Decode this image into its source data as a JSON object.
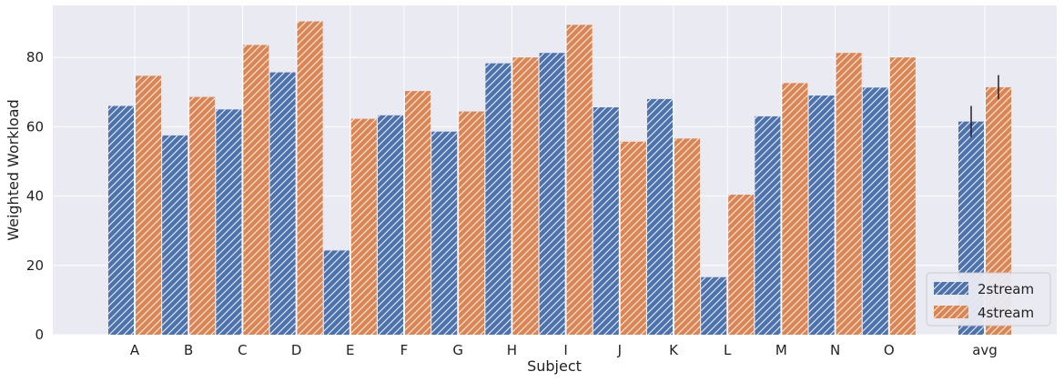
{
  "chart_data": {
    "type": "bar",
    "xlabel": "Subject",
    "ylabel": "Weighted Workload",
    "ylim": [
      0,
      95
    ],
    "yticks": [
      0,
      20,
      40,
      60,
      80
    ],
    "grid": true,
    "legend_position": "lower-right",
    "categories": [
      "A",
      "B",
      "C",
      "D",
      "E",
      "F",
      "G",
      "H",
      "I",
      "J",
      "K",
      "L",
      "M",
      "N",
      "O",
      "avg"
    ],
    "series": [
      {
        "name": "2stream",
        "color": "#4c72b0",
        "values": [
          66,
          57.5,
          65,
          75.7,
          24.3,
          63.3,
          58.6,
          78.3,
          81.3,
          65.6,
          68,
          16.6,
          63,
          69,
          71.3,
          61.5
        ],
        "error": [
          null,
          null,
          null,
          null,
          null,
          null,
          null,
          null,
          null,
          null,
          null,
          null,
          null,
          null,
          null,
          4.5
        ]
      },
      {
        "name": "4stream",
        "color": "#dd8452",
        "values": [
          74.7,
          68.6,
          83.6,
          90.4,
          62.3,
          70.3,
          64.4,
          80,
          89.4,
          55.7,
          56.6,
          40.4,
          72.6,
          81.3,
          80,
          71.4
        ],
        "error": [
          null,
          null,
          null,
          null,
          null,
          null,
          null,
          null,
          null,
          null,
          null,
          null,
          null,
          null,
          null,
          3.5
        ]
      }
    ]
  }
}
